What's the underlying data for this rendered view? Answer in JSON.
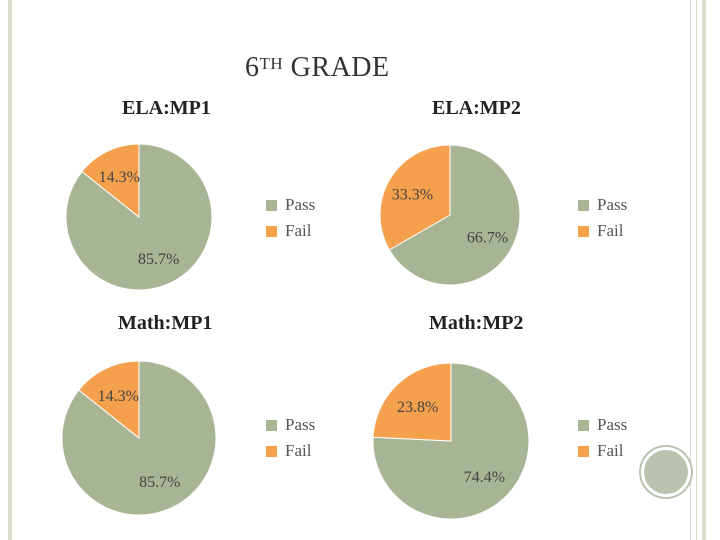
{
  "slide": {
    "title_main": "6",
    "title_sup": "TH",
    "title_rest": " GRADE"
  },
  "colors": {
    "pass": "#a7b595",
    "fail": "#f5a04c"
  },
  "chart_data": [
    {
      "type": "pie",
      "title": "ELA:MP1",
      "categories": [
        "Pass",
        "Fail"
      ],
      "values": [
        85.7,
        14.3
      ],
      "labels": [
        "85.7%",
        "14.3%"
      ],
      "legend_position": "right"
    },
    {
      "type": "pie",
      "title": "ELA:MP2",
      "categories": [
        "Pass",
        "Fail"
      ],
      "values": [
        66.7,
        33.3
      ],
      "labels": [
        "66.7%",
        "33.3%"
      ],
      "legend_position": "right"
    },
    {
      "type": "pie",
      "title": "Math:MP1",
      "categories": [
        "Pass",
        "Fail"
      ],
      "values": [
        85.7,
        14.3
      ],
      "labels": [
        "85.7%",
        "14.3%"
      ],
      "legend_position": "right"
    },
    {
      "type": "pie",
      "title": "Math:MP2",
      "categories": [
        "Pass",
        "Fail"
      ],
      "values": [
        74.4,
        23.8
      ],
      "labels": [
        "74.4%",
        "23.8%"
      ],
      "legend_position": "right"
    }
  ]
}
